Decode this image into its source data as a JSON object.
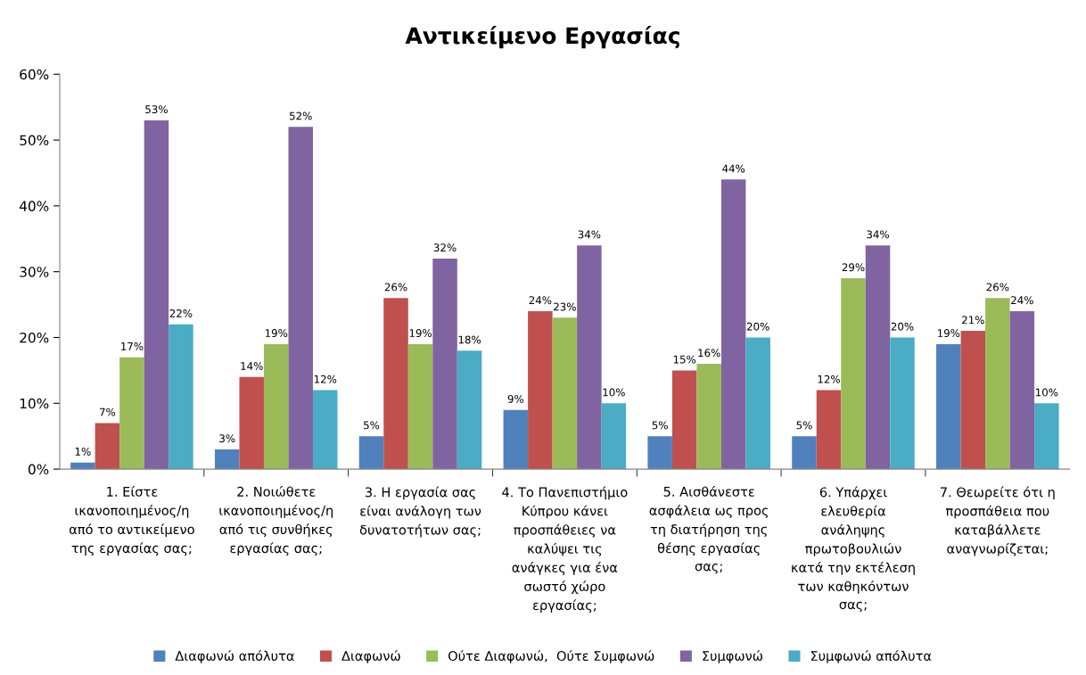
{
  "chart_data": {
    "type": "bar",
    "title": "Αντικείμενο Εργασίας",
    "categories": [
      "1. Είστε\nικανοποιημένος/η\nαπό το αντικείμενο\nτης εργασίας σας;",
      "2. Νοιώθετε\nικανοποιημένος/η\nαπό τις συνθήκες\nεργασίας σας;",
      "3. Η εργασία σας\nείναι ανάλογη των\nδυνατοτήτων σας;",
      "4. Το Πανεπιστήμιο\nΚύπρου κάνει\nπροσπάθειες να\nκαλύψει τις\nανάγκες για ένα\nσωστό χώρο\nεργασίας;",
      "5. Αισθάνεστε\nασφάλεια ως προς\nτη διατήρηση της\nθέσης εργασίας\nσας;",
      "6. Υπάρχει\nελευθερία\nανάληψης\nπρωτοβουλιών\nκατά την εκτέλεση\nτων καθηκόντων\nσας;",
      "7. Θεωρείτε ότι η\nπροσπάθεια που\nκαταβάλλετε\nαναγνωρίζεται;"
    ],
    "series": [
      {
        "name": "Διαφωνώ απόλυτα",
        "color": "#4f81bd",
        "values": [
          1,
          3,
          5,
          9,
          5,
          5,
          19
        ],
        "value_labels": [
          "1%",
          "3%",
          "5%",
          "9%",
          "5%",
          "5%",
          "19%"
        ]
      },
      {
        "name": "Διαφωνώ",
        "color": "#c0504d",
        "values": [
          7,
          14,
          26,
          24,
          15,
          12,
          21
        ],
        "value_labels": [
          "7%",
          "14%",
          "26%",
          "24%",
          "15%",
          "12%",
          "21%"
        ]
      },
      {
        "name": "Ούτε Διαφωνώ,  Ούτε Συμφωνώ",
        "color": "#9bbb59",
        "values": [
          17,
          19,
          19,
          23,
          16,
          29,
          26
        ],
        "value_labels": [
          "17%",
          "19%",
          "19%",
          "23%",
          "16%",
          "29%",
          "26%"
        ]
      },
      {
        "name": "Συμφωνώ",
        "color": "#8064a2",
        "values": [
          53,
          52,
          32,
          34,
          44,
          34,
          24
        ],
        "value_labels": [
          "53%",
          "52%",
          "32%",
          "34%",
          "44%",
          "34%",
          "24%"
        ]
      },
      {
        "name": "Συμφωνώ απόλυτα",
        "color": "#4bacc6",
        "values": [
          22,
          12,
          18,
          10,
          20,
          20,
          10
        ],
        "value_labels": [
          "22%",
          "12%",
          "18%",
          "10%",
          "20%",
          "20%",
          "10%"
        ]
      }
    ],
    "ylim": [
      0,
      60
    ],
    "yticks": [
      {
        "value": 0,
        "label": "0%"
      },
      {
        "value": 10,
        "label": "10%"
      },
      {
        "value": 20,
        "label": "20%"
      },
      {
        "value": 30,
        "label": "30%"
      },
      {
        "value": 40,
        "label": "40%"
      },
      {
        "value": 50,
        "label": "50%"
      },
      {
        "value": 60,
        "label": "60%"
      }
    ],
    "legend": "bottom"
  }
}
